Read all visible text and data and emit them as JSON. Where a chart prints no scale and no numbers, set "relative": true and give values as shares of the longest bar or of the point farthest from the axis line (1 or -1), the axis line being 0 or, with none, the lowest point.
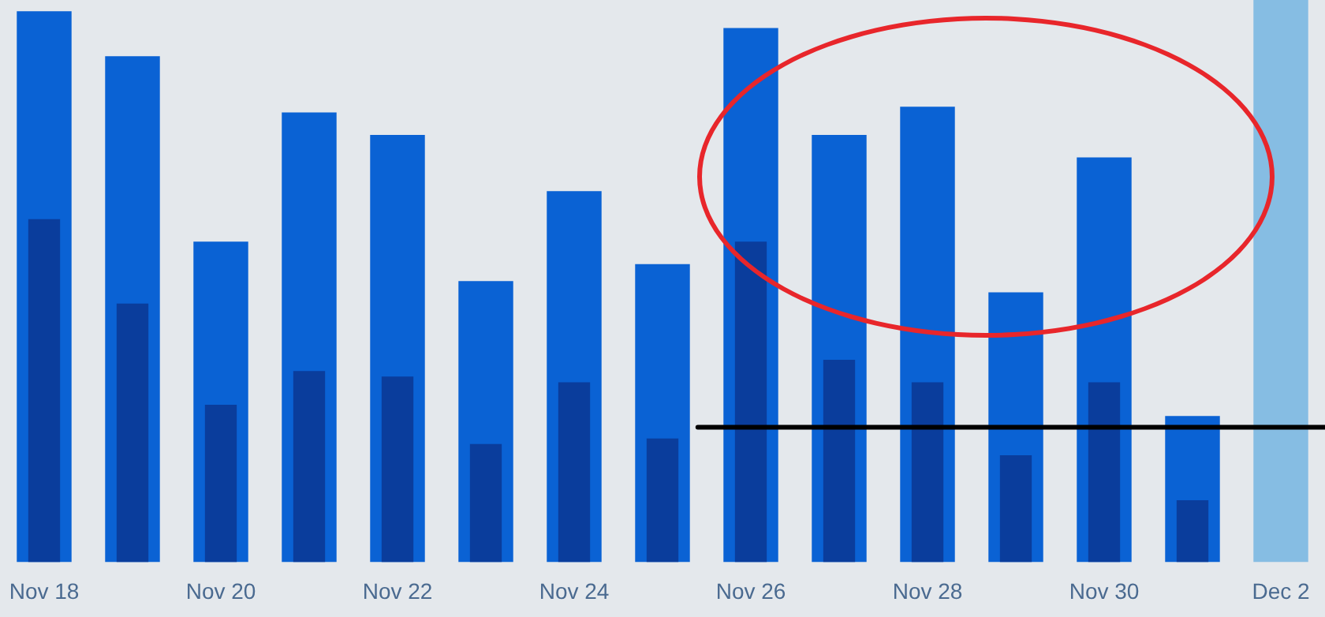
{
  "chart_data": {
    "type": "bar",
    "relative": true,
    "categories": [
      "Nov 18",
      null,
      "Nov 20",
      null,
      "Nov 22",
      null,
      "Nov 24",
      null,
      "Nov 26",
      null,
      "Nov 28",
      null,
      "Nov 30",
      null,
      "Dec 2"
    ],
    "series": [
      {
        "color": "#0a62d4",
        "colors": [
          null,
          null,
          null,
          null,
          null,
          null,
          null,
          null,
          null,
          null,
          null,
          null,
          null,
          null,
          "#86bde3"
        ],
        "values": [
          0.98,
          0.9,
          0.57,
          0.8,
          0.76,
          0.5,
          0.66,
          0.53,
          0.95,
          0.76,
          0.81,
          0.48,
          0.72,
          0.26,
          1.0
        ]
      },
      {
        "color": "#0a3d9c",
        "values": [
          0.61,
          0.46,
          0.28,
          0.34,
          0.33,
          0.21,
          0.32,
          0.22,
          0.57,
          0.36,
          0.32,
          0.19,
          0.32,
          0.11,
          null
        ]
      }
    ],
    "ref_lines": [
      {
        "axis": "y",
        "value": 0.24,
        "color": "#000000"
      }
    ]
  }
}
